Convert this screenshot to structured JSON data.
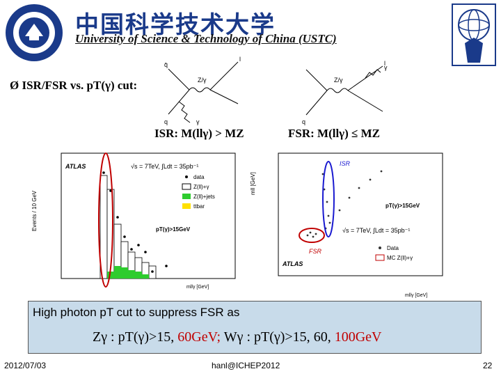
{
  "header": {
    "title_cn": "中国科学技术大学",
    "title_en": "University of Science & Technology of China (USTC)"
  },
  "bullet": {
    "symbol": "Ø",
    "text": "ISR/FSR vs. pT(γ) cut:"
  },
  "labels": {
    "isr": "ISR: M(llγ) > MZ",
    "fsr": "FSR: M(llγ) ≤ MZ"
  },
  "feynman": {
    "isr_boson": "Z/γ",
    "fsr_boson": "Z/γ",
    "q": "q",
    "qbar": "q̄",
    "l": "l",
    "gamma": "γ"
  },
  "left_plot": {
    "ylabel": "Events / 10 GeV",
    "xlabel": "mllγ [GeV]",
    "atlas": "ATLAS",
    "energy": "√s = 7TeV, ∫Ldt = 35pb⁻¹",
    "cut": "pT(γ)>15GeV",
    "legend": [
      "data",
      "Z(ll)+γ",
      "Z(ll)+jets",
      "ttbar"
    ],
    "colors": {
      "zg": "#ffffff",
      "zjets": "#2ecc2e",
      "ttbar": "#ffe000",
      "circle": "#c00000"
    }
  },
  "right_plot": {
    "ylabel": "mll [GeV]",
    "xlabel": "mllγ [GeV]",
    "atlas": "ATLAS",
    "energy": "√s = 7TeV, ∫Ldt = 35pb⁻¹",
    "cut": "pT(γ)>15GeV",
    "isr": "ISR",
    "fsr": "FSR",
    "legend": [
      "Data",
      "MC Z(ll)+γ"
    ],
    "colors": {
      "isr": "#1a1ad0",
      "fsr": "#c00000"
    }
  },
  "note": {
    "line1": "High photon pT cut to suppress FSR as",
    "zg": "Zγ : pT(γ)>15,",
    "zg_cut": "60GeV;",
    "wg": "Wγ : pT(γ)>15,",
    "wg_cut1": "60,",
    "wg_cut2": "100GeV"
  },
  "footer": {
    "date": "2012/07/03",
    "email": "hanl@ICHEP2012",
    "page": "22"
  }
}
